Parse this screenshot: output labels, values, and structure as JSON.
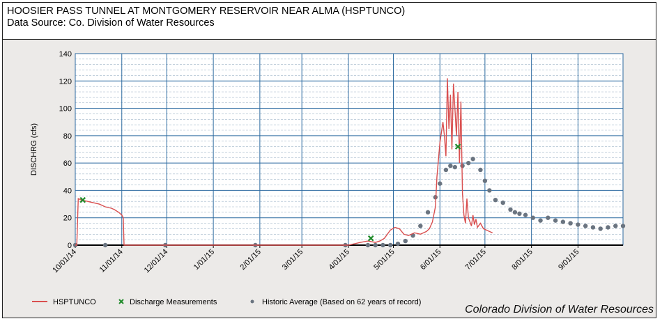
{
  "header": {
    "title": "HOOSIER PASS TUNNEL AT MONTGOMERY RESERVOIR NEAR ALMA (HSPTUNCO)",
    "subtitle": "Data Source: Co. Division of Water Resources"
  },
  "credit": "Colorado Division of Water Resources",
  "colors": {
    "plot_background": "#2c6aa0",
    "series": "#d94f4f",
    "measurement": "#1f8a2a",
    "historic": "#6a7480",
    "frame_background": "#eceae8"
  },
  "chart_data": {
    "type": "line",
    "ylabel": "DISCHRG (cfs)",
    "ylim": [
      0,
      140
    ],
    "yticks": [
      0,
      20,
      40,
      60,
      80,
      100,
      120,
      140
    ],
    "xlim_days": [
      0,
      365
    ],
    "xticks": [
      {
        "label": "10/01/14",
        "day": 0
      },
      {
        "label": "11/01/14",
        "day": 31
      },
      {
        "label": "12/01/14",
        "day": 61
      },
      {
        "label": "1/01/15",
        "day": 92
      },
      {
        "label": "2/01/15",
        "day": 123
      },
      {
        "label": "3/01/15",
        "day": 151
      },
      {
        "label": "4/01/15",
        "day": 182
      },
      {
        "label": "5/01/15",
        "day": 212
      },
      {
        "label": "6/01/15",
        "day": 243
      },
      {
        "label": "7/01/15",
        "day": 273
      },
      {
        "label": "8/01/15",
        "day": 304
      },
      {
        "label": "9/01/15",
        "day": 335
      }
    ],
    "grid": true,
    "legend_position": "bottom",
    "legend": {
      "series": "HSPTUNCO",
      "measurements": "Discharge Measurements",
      "historic": "Historic Average (Based on 62 years of record)"
    },
    "series": [
      {
        "name": "HSPTUNCO",
        "x": [
          0,
          1,
          2,
          4,
          8,
          12,
          16,
          20,
          24,
          26,
          29,
          30,
          31,
          32,
          32.5,
          33,
          40,
          80,
          120,
          160,
          182,
          190,
          195,
          200,
          203,
          206,
          210,
          213,
          216,
          219,
          222,
          226,
          230,
          234,
          236,
          238,
          240,
          241,
          243,
          245,
          246,
          247,
          248,
          249,
          250,
          251,
          252,
          253,
          254,
          255,
          256,
          257,
          258,
          259,
          260,
          261,
          262,
          263,
          264,
          265,
          266,
          267,
          268,
          270,
          272,
          274,
          276,
          278
        ],
        "y": [
          0,
          0,
          34,
          33,
          32,
          31,
          30,
          28,
          27,
          26,
          24,
          23,
          22,
          20,
          0,
          0,
          0,
          0,
          0,
          0,
          0,
          2,
          3,
          2,
          3,
          5,
          11,
          13,
          12,
          8,
          7,
          9,
          8,
          10,
          12,
          17,
          28,
          50,
          75,
          90,
          80,
          65,
          122,
          85,
          110,
          70,
          118,
          100,
          80,
          112,
          60,
          105,
          38,
          22,
          16,
          34,
          20,
          17,
          14,
          22,
          15,
          19,
          13,
          16,
          12,
          11,
          10,
          9
        ]
      },
      {
        "name": "Discharge Measurements",
        "x": [
          5,
          197,
          255
        ],
        "y": [
          33,
          5,
          72
        ]
      },
      {
        "name": "Historic Average (Based on 62 years of record)",
        "x": [
          0,
          20,
          60,
          120,
          180,
          195,
          200,
          205,
          210,
          215,
          220,
          225,
          230,
          235,
          240,
          243,
          247,
          250,
          253,
          258,
          262,
          265,
          270,
          273,
          276,
          280,
          285,
          290,
          293,
          296,
          300,
          305,
          310,
          315,
          320,
          325,
          330,
          335,
          340,
          345,
          350,
          355,
          360,
          365
        ],
        "y": [
          0,
          0,
          0,
          0,
          0,
          0,
          0,
          0,
          0,
          1,
          3,
          7,
          14,
          24,
          35,
          45,
          55,
          58,
          57,
          58,
          60,
          63,
          55,
          47,
          40,
          33,
          31,
          26,
          24,
          23,
          22,
          20,
          18,
          20,
          18,
          17,
          16,
          15,
          14,
          13,
          12,
          13,
          14,
          14
        ]
      }
    ]
  }
}
